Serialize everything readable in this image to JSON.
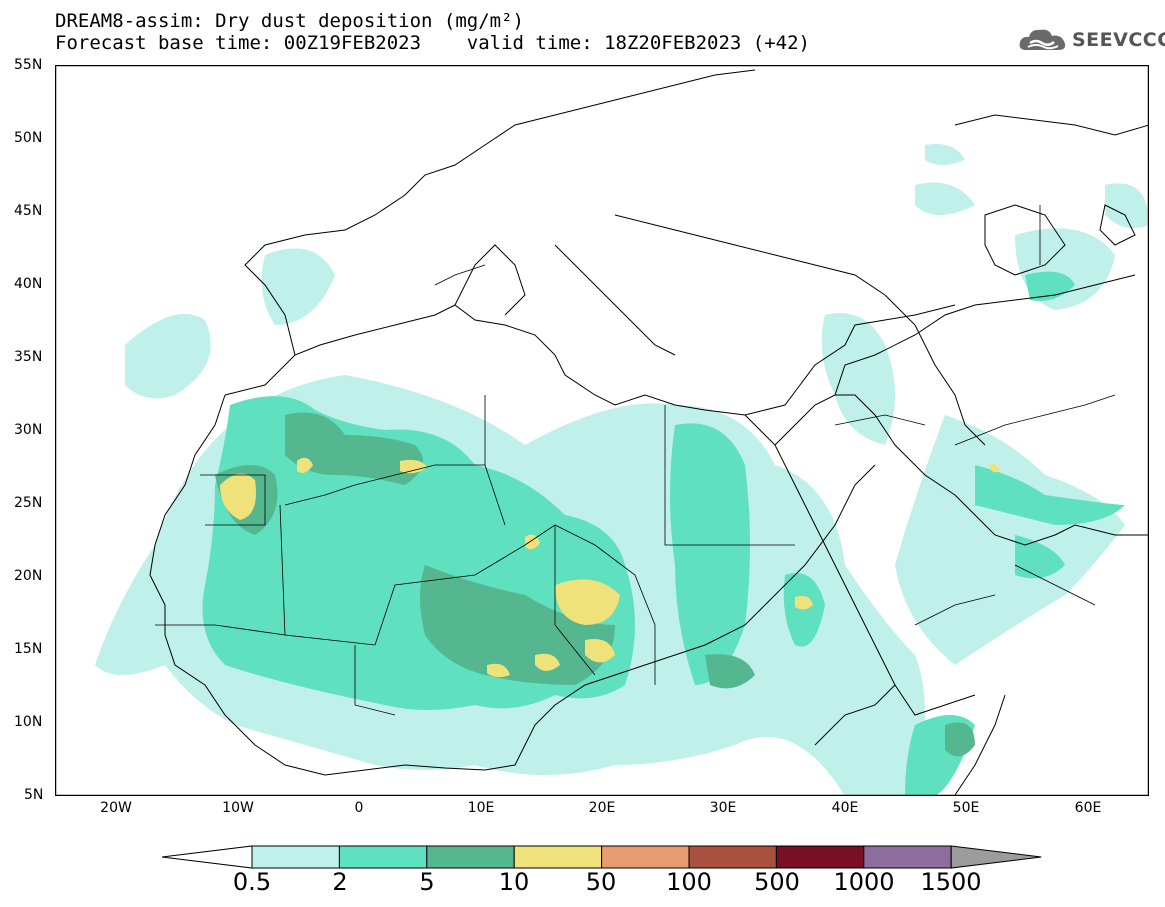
{
  "title": {
    "line1": "DREAM8-assim: Dry dust deposition (mg/m²)",
    "line2": "Forecast base time: 00Z19FEB2023    valid time: 18Z20FEB2023 (+42)"
  },
  "logo": {
    "text": "SEEVCCC",
    "icon": "cloud-icon"
  },
  "lat_labels": [
    "55N",
    "50N",
    "45N",
    "40N",
    "35N",
    "30N",
    "25N",
    "20N",
    "15N",
    "10N",
    "5N"
  ],
  "lon_labels": [
    "20W",
    "10W",
    "0",
    "10E",
    "20E",
    "30E",
    "40E",
    "50E",
    "60E"
  ],
  "colorbar": {
    "labels": [
      "0.5",
      "2",
      "5",
      "10",
      "50",
      "100",
      "500",
      "1000",
      "1500"
    ],
    "colors": [
      "#ffffff",
      "#bff0ea",
      "#5fe0bf",
      "#54b790",
      "#f0e27a",
      "#e89a70",
      "#a9503f",
      "#7a0e25",
      "#8e6c9e",
      "#9c9c9c"
    ]
  },
  "palette": {
    "coast": "#000000",
    "ocean": "#ffffff"
  }
}
